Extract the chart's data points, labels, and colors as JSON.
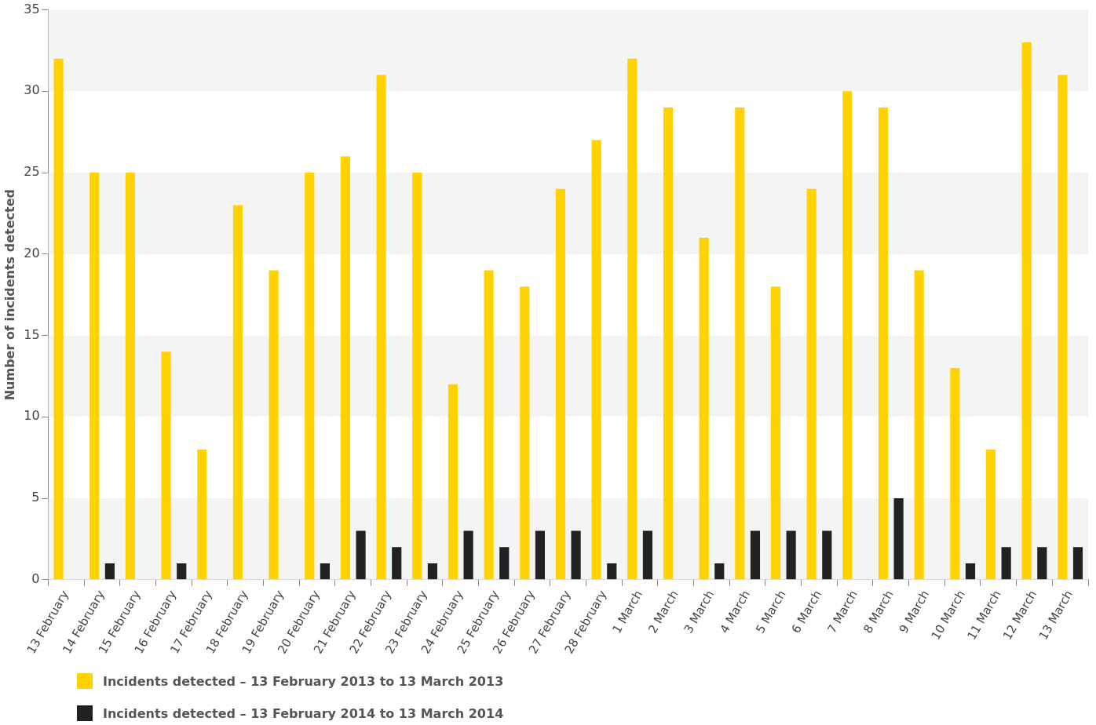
{
  "chart_data": {
    "type": "bar",
    "ylabel": "Number of incidents detected",
    "categories": [
      "13 February",
      "14 February",
      "15 February",
      "16 February",
      "17 February",
      "18 February",
      "19 February",
      "20 February",
      "21 February",
      "22 February",
      "23 February",
      "24 February",
      "25 February",
      "26 February",
      "27 February",
      "28 February",
      "1 March",
      "2 March",
      "3 March",
      "4 March",
      "5 March",
      "6 March",
      "7 March",
      "8 March",
      "9 March",
      "10 March",
      "11 March",
      "12 March",
      "13 March"
    ],
    "series": [
      {
        "name": "Incidents detected – 13 February 2013 to 13 March 2013",
        "color": "#ffd200",
        "values": [
          32,
          25,
          25,
          14,
          8,
          23,
          19,
          25,
          26,
          31,
          25,
          12,
          19,
          18,
          24,
          27,
          32,
          29,
          21,
          29,
          18,
          24,
          30,
          29,
          19,
          13,
          8,
          33,
          31
        ]
      },
      {
        "name": "Incidents detected – 13 February 2014 to 13 March 2014",
        "color": "#222222",
        "values": [
          0,
          1,
          0,
          1,
          0,
          0,
          0,
          1,
          3,
          2,
          1,
          3,
          2,
          3,
          3,
          1,
          3,
          0,
          1,
          3,
          3,
          3,
          0,
          5,
          0,
          1,
          2,
          2,
          2
        ]
      }
    ],
    "ylim": [
      0,
      35
    ],
    "yticks": [
      0,
      5,
      10,
      15,
      20,
      25,
      30,
      35
    ],
    "legend": "bottom left",
    "bands": [
      {
        "axis": "y",
        "from": 0,
        "to": 5,
        "color": "#f4f4f4"
      },
      {
        "axis": "y",
        "from": 10,
        "to": 15,
        "color": "#f4f4f4"
      },
      {
        "axis": "y",
        "from": 20,
        "to": 25,
        "color": "#f4f4f4"
      },
      {
        "axis": "y",
        "from": 30,
        "to": 35,
        "color": "#f4f4f4"
      }
    ]
  }
}
